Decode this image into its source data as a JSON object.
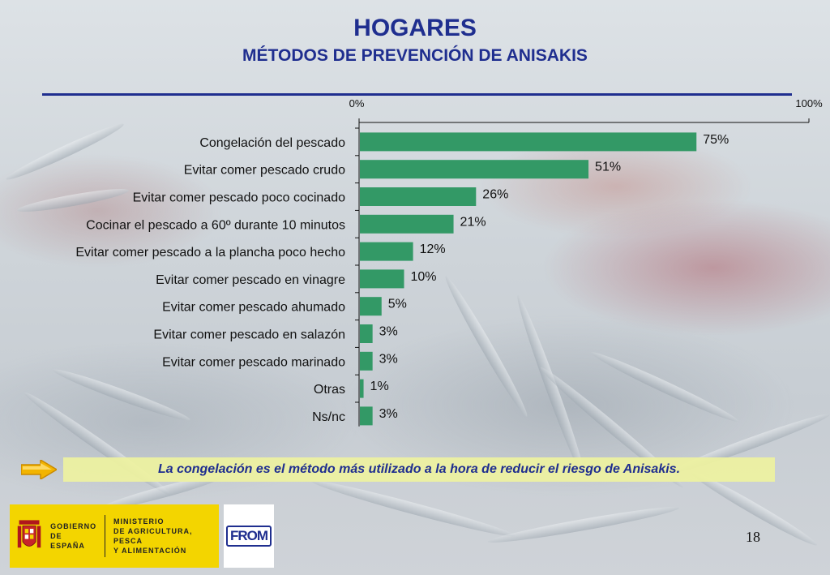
{
  "title": "HOGARES",
  "subtitle": "MÉTODOS DE PREVENCIÓN DE ANISAKIS",
  "chart_data": {
    "type": "bar",
    "orientation": "horizontal",
    "categories": [
      "Congelación del pescado",
      "Evitar comer pescado crudo",
      "Evitar comer pescado poco cocinado",
      "Cocinar el pescado a 60º durante 10 minutos",
      "Evitar comer pescado a la plancha poco hecho",
      "Evitar comer pescado en vinagre",
      "Evitar comer pescado ahumado",
      "Evitar comer pescado en salazón",
      "Evitar comer pescado marinado",
      "Otras",
      "Ns/nc"
    ],
    "values": [
      75,
      51,
      26,
      21,
      12,
      10,
      5,
      3,
      3,
      1,
      3
    ],
    "value_labels": [
      "75%",
      "51%",
      "26%",
      "21%",
      "12%",
      "10%",
      "5%",
      "3%",
      "3%",
      "1%",
      "3%"
    ],
    "xlim": [
      0,
      100
    ],
    "tick_labels": [
      "0%",
      "100%"
    ],
    "bar_color": "#339966",
    "grid": false,
    "legend": "none"
  },
  "callout": {
    "text": "La congelación es el método más utilizado a la hora de reducir el riesgo de Anisakis.",
    "background": "#eef2a0"
  },
  "footer": {
    "gobierno_line1": "GOBIERNO",
    "gobierno_line2": "DE ESPAÑA",
    "ministerio_line1": "MINISTERIO",
    "ministerio_line2": "DE AGRICULTURA, PESCA",
    "ministerio_line3": "Y ALIMENTACIÓN",
    "from_logo": "FROM"
  },
  "page_number": "18",
  "colors": {
    "title": "#1f2e8f",
    "bar": "#339966",
    "gob_yellow": "#f3d500"
  }
}
